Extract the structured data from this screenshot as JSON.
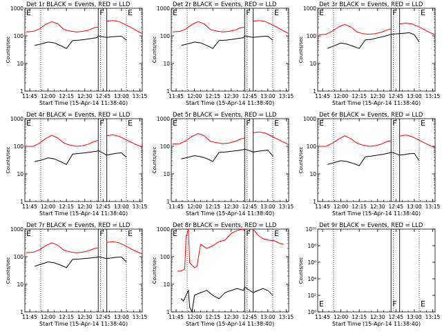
{
  "time_ticks": [
    "11:45",
    "12:00",
    "12:15",
    "12:30",
    "12:45",
    "13:00",
    "13:15"
  ],
  "xlabel": "Start Time (15-Apr-14 11:38:40)",
  "ylabel": "Counts/sec",
  "marker_labels": {
    "F": "F",
    "E": "E"
  },
  "colors": {
    "events": "#000000",
    "lld": "#ff0000"
  },
  "chart_data": [
    {
      "type": "line",
      "title": "Det 1r BLACK = Events, RED = LLD",
      "y_scale": "log",
      "ylim": [
        1,
        1000
      ],
      "ytick_labels": [
        "1",
        "10",
        "100",
        "1000"
      ],
      "xlim": [
        "11:41",
        "13:17"
      ],
      "dotted_lines": [
        "11:54",
        "12:43",
        "13:04"
      ],
      "solid_lines": [
        "12:41",
        "12:48"
      ],
      "series": [
        {
          "name": "Events",
          "x": [
            "11:49",
            "11:55",
            "12:00",
            "12:05",
            "12:10",
            "12:15",
            "12:20",
            "12:25",
            "12:30",
            "12:35",
            "12:40",
            "12:41",
            "12:48",
            "12:52",
            "12:56",
            "13:00",
            "13:04"
          ],
          "values": [
            45,
            52,
            60,
            56,
            45,
            35,
            68,
            70,
            74,
            80,
            86,
            100,
            88,
            92,
            96,
            98,
            70
          ]
        },
        {
          "name": "LLD",
          "x": [
            "11:42",
            "11:48",
            "11:53",
            "11:58",
            "12:03",
            "12:08",
            "12:13",
            "12:18",
            "12:23",
            "12:28",
            "12:33",
            "12:38",
            "12:41",
            "12:44",
            "12:48",
            "12:53",
            "12:58",
            "13:03",
            "13:08",
            "13:13",
            "13:17"
          ],
          "values": [
            140,
            145,
            180,
            260,
            330,
            270,
            170,
            150,
            140,
            145,
            160,
            200,
            210,
            280,
            340,
            360,
            330,
            260,
            200,
            150,
            120
          ]
        }
      ]
    },
    {
      "type": "line",
      "title": "Det 2r BLACK = Events, RED = LLD",
      "y_scale": "log",
      "ylim": [
        1,
        1000
      ],
      "ytick_labels": [
        "1",
        "10",
        "100",
        "1000"
      ],
      "xlim": [
        "11:41",
        "13:17"
      ],
      "dotted_lines": [
        "11:54",
        "12:43",
        "13:04"
      ],
      "solid_lines": [
        "12:41",
        "12:48"
      ],
      "series": [
        {
          "name": "Events",
          "x": [
            "11:49",
            "11:55",
            "12:00",
            "12:05",
            "12:10",
            "12:15",
            "12:20",
            "12:25",
            "12:30",
            "12:35",
            "12:40",
            "12:41",
            "12:48",
            "12:52",
            "12:56",
            "13:00",
            "13:04"
          ],
          "values": [
            45,
            52,
            60,
            56,
            45,
            35,
            68,
            70,
            74,
            80,
            86,
            100,
            88,
            92,
            96,
            98,
            70
          ]
        },
        {
          "name": "LLD",
          "x": [
            "11:42",
            "11:48",
            "11:53",
            "11:58",
            "12:03",
            "12:08",
            "12:13",
            "12:18",
            "12:23",
            "12:28",
            "12:33",
            "12:38",
            "12:41",
            "12:44",
            "12:48",
            "12:53",
            "12:58",
            "13:03",
            "13:08",
            "13:13",
            "13:17"
          ],
          "values": [
            140,
            145,
            180,
            260,
            330,
            270,
            170,
            150,
            140,
            145,
            160,
            200,
            210,
            280,
            340,
            360,
            330,
            260,
            200,
            150,
            120
          ]
        }
      ]
    },
    {
      "type": "line",
      "title": "Det 3r BLACK = Events, RED = LLD",
      "y_scale": "log",
      "ylim": [
        1,
        1000
      ],
      "ytick_labels": [
        "1",
        "10",
        "100",
        "1000"
      ],
      "xlim": [
        "11:41",
        "13:17"
      ],
      "dotted_lines": [
        "11:54",
        "12:43",
        "13:04"
      ],
      "solid_lines": [
        "12:41",
        "12:48"
      ],
      "series": [
        {
          "name": "Events",
          "x": [
            "11:49",
            "11:55",
            "12:00",
            "12:05",
            "12:10",
            "12:15",
            "12:20",
            "12:25",
            "12:30",
            "12:35",
            "12:40",
            "12:41",
            "12:48",
            "12:52",
            "12:56",
            "13:00",
            "13:04"
          ],
          "values": [
            35,
            45,
            55,
            50,
            42,
            35,
            72,
            75,
            85,
            95,
            110,
            115,
            120,
            125,
            130,
            110,
            60
          ]
        },
        {
          "name": "LLD",
          "x": [
            "11:42",
            "11:48",
            "11:53",
            "11:58",
            "12:03",
            "12:08",
            "12:13",
            "12:18",
            "12:23",
            "12:28",
            "12:33",
            "12:38",
            "12:41",
            "12:44",
            "12:48",
            "12:53",
            "12:58",
            "13:03",
            "13:08",
            "13:13",
            "13:17"
          ],
          "values": [
            110,
            115,
            150,
            210,
            260,
            210,
            140,
            120,
            115,
            120,
            135,
            165,
            180,
            220,
            270,
            290,
            270,
            220,
            170,
            130,
            110
          ]
        }
      ]
    },
    {
      "type": "line",
      "title": "Det 4r BLACK = Events, RED = LLD",
      "y_scale": "log",
      "ylim": [
        1,
        1000
      ],
      "ytick_labels": [
        "1",
        "10",
        "100",
        "1000"
      ],
      "xlim": [
        "11:41",
        "13:17"
      ],
      "dotted_lines": [
        "11:54",
        "12:43",
        "13:04"
      ],
      "solid_lines": [
        "12:41",
        "12:48"
      ],
      "series": [
        {
          "name": "Events",
          "x": [
            "11:49",
            "11:55",
            "12:00",
            "12:05",
            "12:10",
            "12:15",
            "12:20",
            "12:25",
            "12:30",
            "12:35",
            "12:40",
            "12:41",
            "12:48",
            "12:52",
            "12:56",
            "13:00",
            "13:04"
          ],
          "values": [
            28,
            32,
            38,
            35,
            28,
            22,
            52,
            55,
            58,
            62,
            66,
            70,
            48,
            52,
            56,
            58,
            40
          ]
        },
        {
          "name": "LLD",
          "x": [
            "11:42",
            "11:48",
            "11:53",
            "11:58",
            "12:03",
            "12:08",
            "12:13",
            "12:18",
            "12:23",
            "12:28",
            "12:33",
            "12:38",
            "12:41",
            "12:44",
            "12:48",
            "12:53",
            "12:58",
            "13:03",
            "13:08",
            "13:13",
            "13:17"
          ],
          "values": [
            100,
            100,
            130,
            190,
            250,
            200,
            130,
            110,
            100,
            105,
            120,
            150,
            165,
            210,
            240,
            260,
            230,
            180,
            140,
            110,
            95
          ]
        }
      ]
    },
    {
      "type": "line",
      "title": "Det 5r BLACK = Events, RED = LLD",
      "y_scale": "log",
      "ylim": [
        1,
        1000
      ],
      "ytick_labels": [
        "1",
        "10",
        "100",
        "1000"
      ],
      "xlim": [
        "11:41",
        "13:17"
      ],
      "dotted_lines": [
        "11:54",
        "12:43",
        "13:04"
      ],
      "solid_lines": [
        "12:41",
        "12:48"
      ],
      "series": [
        {
          "name": "Events",
          "x": [
            "11:49",
            "11:55",
            "12:00",
            "12:05",
            "12:10",
            "12:15",
            "12:20",
            "12:25",
            "12:30",
            "12:35",
            "12:40",
            "12:41",
            "12:48",
            "12:52",
            "12:56",
            "13:00",
            "13:04"
          ],
          "values": [
            35,
            40,
            46,
            42,
            36,
            28,
            60,
            62,
            66,
            70,
            76,
            80,
            62,
            66,
            70,
            72,
            45
          ]
        },
        {
          "name": "LLD",
          "x": [
            "11:42",
            "11:48",
            "11:53",
            "11:58",
            "12:03",
            "12:08",
            "12:13",
            "12:18",
            "12:23",
            "12:28",
            "12:33",
            "12:38",
            "12:41",
            "12:44",
            "12:48",
            "12:53",
            "12:58",
            "13:03",
            "13:08",
            "13:13",
            "13:17"
          ],
          "values": [
            120,
            125,
            160,
            230,
            290,
            240,
            150,
            135,
            125,
            130,
            150,
            185,
            200,
            260,
            310,
            330,
            300,
            230,
            180,
            140,
            115
          ]
        }
      ]
    },
    {
      "type": "line",
      "title": "Det 6r BLACK = Events, RED = LLD",
      "y_scale": "log",
      "ylim": [
        1,
        1000
      ],
      "ytick_labels": [
        "1",
        "10",
        "100",
        "1000"
      ],
      "xlim": [
        "11:41",
        "13:17"
      ],
      "dotted_lines": [
        "11:54",
        "12:43",
        "13:04"
      ],
      "solid_lines": [
        "12:41",
        "12:48"
      ],
      "series": [
        {
          "name": "Events",
          "x": [
            "11:49",
            "11:55",
            "12:00",
            "12:05",
            "12:10",
            "12:15",
            "12:20",
            "12:25",
            "12:30",
            "12:35",
            "12:40",
            "12:41",
            "12:48",
            "12:52",
            "12:56",
            "13:00",
            "13:04"
          ],
          "values": [
            22,
            26,
            30,
            28,
            24,
            20,
            42,
            44,
            48,
            52,
            58,
            62,
            48,
            50,
            54,
            55,
            30
          ]
        },
        {
          "name": "LLD",
          "x": [
            "11:42",
            "11:48",
            "11:53",
            "11:58",
            "12:03",
            "12:08",
            "12:13",
            "12:18",
            "12:23",
            "12:28",
            "12:33",
            "12:38",
            "12:41",
            "12:44",
            "12:48",
            "12:53",
            "12:58",
            "13:03",
            "13:08",
            "13:13",
            "13:17"
          ],
          "values": [
            100,
            100,
            130,
            180,
            240,
            190,
            130,
            110,
            100,
            105,
            120,
            150,
            160,
            200,
            235,
            255,
            225,
            175,
            135,
            105,
            90
          ]
        }
      ]
    },
    {
      "type": "line",
      "title": "Det 7r BLACK = Events, RED = LLD",
      "y_scale": "log",
      "ylim": [
        1,
        1000
      ],
      "ytick_labels": [
        "1",
        "10",
        "100",
        "1000"
      ],
      "xlim": [
        "11:41",
        "13:17"
      ],
      "dotted_lines": [
        "11:54",
        "12:43",
        "13:04"
      ],
      "solid_lines": [
        "12:41",
        "12:48"
      ],
      "series": [
        {
          "name": "Events",
          "x": [
            "11:49",
            "11:55",
            "12:00",
            "12:05",
            "12:10",
            "12:15",
            "12:20",
            "12:25",
            "12:30",
            "12:35",
            "12:40",
            "12:41",
            "12:48",
            "12:52",
            "12:56",
            "13:00",
            "13:04"
          ],
          "values": [
            45,
            55,
            65,
            60,
            50,
            40,
            80,
            82,
            86,
            90,
            95,
            100,
            85,
            90,
            96,
            98,
            65
          ]
        },
        {
          "name": "LLD",
          "x": [
            "11:42",
            "11:48",
            "11:53",
            "11:58",
            "12:03",
            "12:08",
            "12:13",
            "12:18",
            "12:23",
            "12:28",
            "12:33",
            "12:38",
            "12:41",
            "12:44",
            "12:48",
            "12:53",
            "12:58",
            "13:03",
            "13:08",
            "13:13",
            "13:17"
          ],
          "values": [
            140,
            145,
            180,
            250,
            320,
            260,
            170,
            150,
            140,
            145,
            165,
            200,
            210,
            280,
            330,
            350,
            320,
            250,
            190,
            150,
            125
          ]
        }
      ]
    },
    {
      "type": "line",
      "title": "Det 8r BLACK = Events, RED = LLD",
      "y_scale": "log",
      "ylim": [
        1,
        1000
      ],
      "ytick_labels": [
        "1",
        "10",
        "100",
        "1000"
      ],
      "xlim": [
        "11:41",
        "13:17"
      ],
      "dotted_lines": [
        "11:54",
        "12:43",
        "13:04"
      ],
      "solid_lines": [
        "12:41",
        "12:48"
      ],
      "series": [
        {
          "name": "Events",
          "x": [
            "11:49",
            "11:51",
            "11:53",
            "11:55",
            "11:56",
            "11:58",
            "12:00",
            "12:05",
            "12:10",
            "12:15",
            "12:20",
            "12:25",
            "12:30",
            "12:35",
            "12:40",
            "12:41",
            "12:48",
            "12:52",
            "12:56",
            "13:00",
            "13:04"
          ],
          "values": [
            3,
            2.5,
            4,
            6,
            1.5,
            1,
            4,
            5,
            6,
            4,
            3,
            5,
            6,
            7,
            6,
            8,
            5,
            6,
            7,
            6,
            4
          ]
        },
        {
          "name": "LLD",
          "x": [
            "11:46",
            "11:48",
            "11:50",
            "11:52",
            "11:53",
            "11:55",
            "11:56",
            "11:58",
            "12:00",
            "12:02",
            "12:05",
            "12:10",
            "12:15",
            "12:20",
            "12:25",
            "12:30",
            "12:35",
            "12:40",
            "12:41",
            "12:44",
            "12:48",
            "12:52",
            "12:56",
            "13:00",
            "13:05",
            "13:10",
            "13:13"
          ],
          "values": [
            30,
            30,
            32,
            35,
            500,
            1000,
            60,
            50,
            40,
            45,
            280,
            200,
            250,
            350,
            400,
            700,
            900,
            1000,
            800,
            900,
            1000,
            600,
            450,
            400,
            380,
            300,
            280
          ]
        }
      ]
    },
    {
      "type": "line",
      "title": "Det 9r BLACK = Events, RED = LLD",
      "y_scale": "log",
      "ylim": [
        1,
        10000000000
      ],
      "ytick_labels": [
        "10⁰",
        "10²",
        "10⁴",
        "10⁶",
        "10⁸",
        "10¹⁰"
      ],
      "xlim": [
        "11:41",
        "13:17"
      ],
      "dotted_lines": [
        "11:54",
        "12:43",
        "13:04"
      ],
      "solid_lines": [
        "12:41",
        "12:48"
      ],
      "series": []
    }
  ]
}
